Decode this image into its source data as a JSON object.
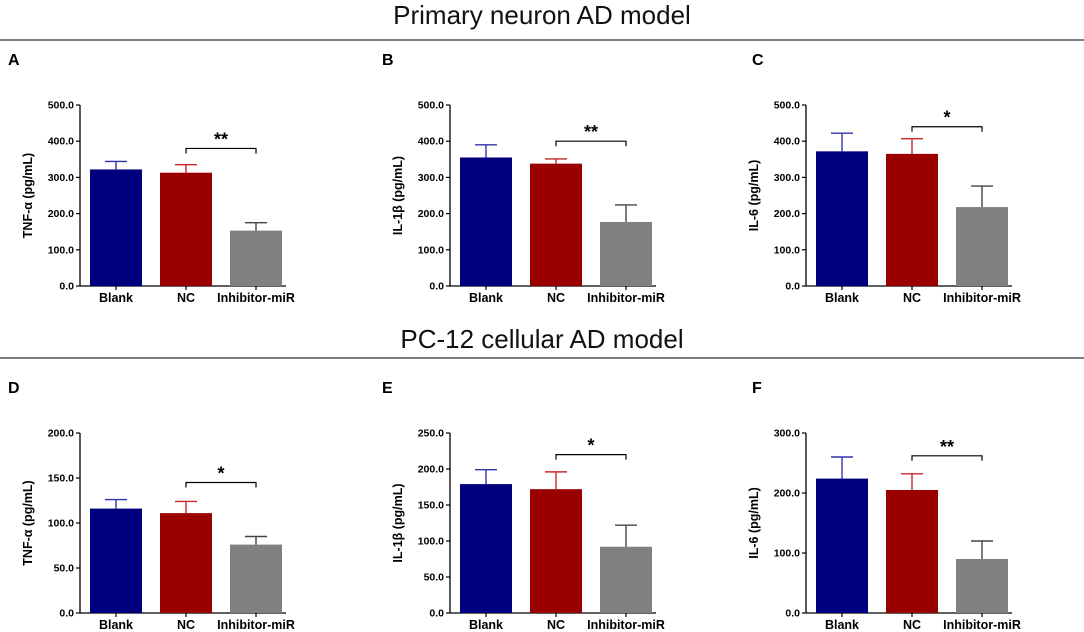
{
  "figure": {
    "titles": [
      "Primary neuron AD model",
      "PC-12 cellular AD model"
    ]
  },
  "colors": {
    "blank": "#00007f",
    "blank_err": "#3333aa",
    "nc": "#9b0000",
    "nc_err": "#c8282a",
    "inhibitor": "#808080",
    "inhibitor_err": "#444444"
  },
  "chart_data": [
    {
      "panel": "A",
      "type": "bar",
      "categories": [
        "Blank",
        "NC",
        "Inhibitor-miR"
      ],
      "values": [
        322,
        313,
        153
      ],
      "errors": [
        22,
        22,
        22
      ],
      "ylabel": "TNF-α (pg/mL)",
      "ylim": [
        0,
        500
      ],
      "yticks": [
        0,
        100,
        200,
        300,
        400,
        500
      ],
      "ytick_labels": [
        "0.0",
        "100.0",
        "200.0",
        "300.0",
        "400.0",
        "500.0"
      ],
      "significance": {
        "from": 1,
        "to": 2,
        "level": 380,
        "label": "**"
      }
    },
    {
      "panel": "B",
      "type": "bar",
      "categories": [
        "Blank",
        "NC",
        "Inhibitor-miR"
      ],
      "values": [
        355,
        338,
        177
      ],
      "errors": [
        35,
        13,
        47
      ],
      "ylabel": "IL-1β (pg/mL)",
      "ylim": [
        0,
        500
      ],
      "yticks": [
        0,
        100,
        200,
        300,
        400,
        500
      ],
      "ytick_labels": [
        "0.0",
        "100.0",
        "200.0",
        "300.0",
        "400.0",
        "500.0"
      ],
      "significance": {
        "from": 1,
        "to": 2,
        "level": 400,
        "label": "**"
      }
    },
    {
      "panel": "C",
      "type": "bar",
      "categories": [
        "Blank",
        "NC",
        "Inhibitor-miR"
      ],
      "values": [
        372,
        365,
        218
      ],
      "errors": [
        50,
        42,
        58
      ],
      "ylabel": "IL-6 (pg/mL)",
      "ylim": [
        0,
        500
      ],
      "yticks": [
        0,
        100,
        200,
        300,
        400,
        500
      ],
      "ytick_labels": [
        "0.0",
        "100.0",
        "200.0",
        "300.0",
        "400.0",
        "500.0"
      ],
      "significance": {
        "from": 1,
        "to": 2,
        "level": 440,
        "label": "*"
      }
    },
    {
      "panel": "D",
      "type": "bar",
      "categories": [
        "Blank",
        "NC",
        "Inhibitor-miR"
      ],
      "values": [
        116,
        111,
        76
      ],
      "errors": [
        10,
        13,
        9
      ],
      "ylabel": "TNF-α (pg/mL)",
      "ylim": [
        0,
        200
      ],
      "yticks": [
        0,
        50,
        100,
        150,
        200
      ],
      "ytick_labels": [
        "0.0",
        "50.0",
        "100.0",
        "150.0",
        "200.0"
      ],
      "significance": {
        "from": 1,
        "to": 2,
        "level": 145,
        "label": "*"
      }
    },
    {
      "panel": "E",
      "type": "bar",
      "categories": [
        "Blank",
        "NC",
        "Inhibitor-miR"
      ],
      "values": [
        179,
        172,
        92
      ],
      "errors": [
        20,
        24,
        30
      ],
      "ylabel": "IL-1β (pg/mL)",
      "ylim": [
        0,
        250
      ],
      "yticks": [
        0,
        50,
        100,
        150,
        200,
        250
      ],
      "ytick_labels": [
        "0.0",
        "50.0",
        "100.0",
        "150.0",
        "200.0",
        "250.0"
      ],
      "significance": {
        "from": 1,
        "to": 2,
        "level": 220,
        "label": "*"
      }
    },
    {
      "panel": "F",
      "type": "bar",
      "categories": [
        "Blank",
        "NC",
        "Inhibitor-miR"
      ],
      "values": [
        224,
        205,
        90
      ],
      "errors": [
        36,
        27,
        30
      ],
      "ylabel": "IL-6 (pg/mL)",
      "ylim": [
        0,
        300
      ],
      "yticks": [
        0,
        100,
        200,
        300
      ],
      "ytick_labels": [
        "0.0",
        "100.0",
        "200.0",
        "300.0"
      ],
      "significance": {
        "from": 1,
        "to": 2,
        "level": 262,
        "label": "**"
      }
    }
  ]
}
